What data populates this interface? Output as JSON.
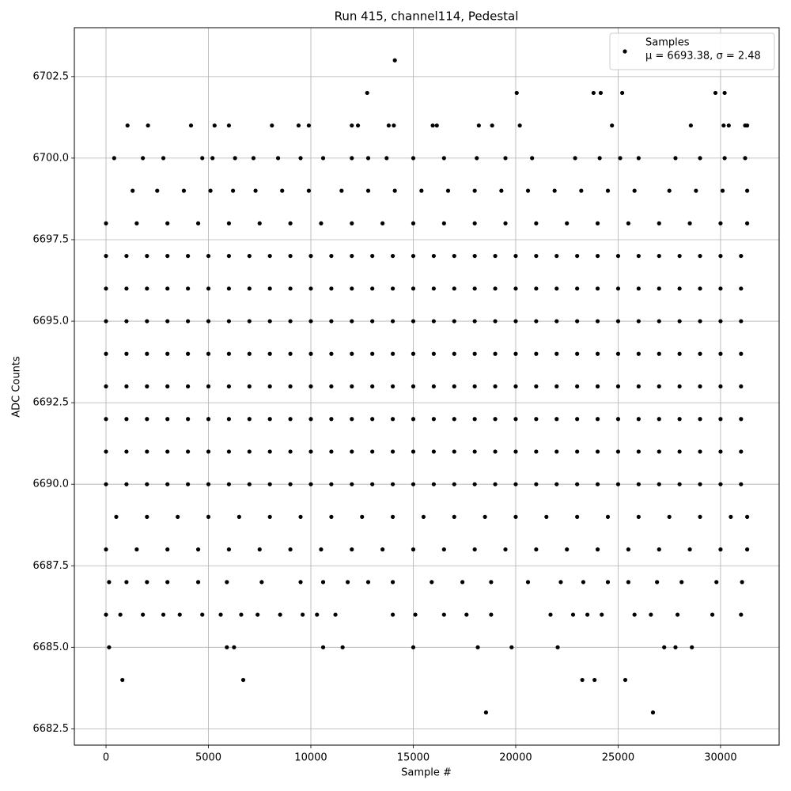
{
  "chart_data": {
    "type": "scatter",
    "title": "Run 415, channel114, Pedestal",
    "x_label": "Sample #",
    "y_label": "ADC Counts",
    "xlim": [
      -1545,
      32860
    ],
    "ylim": [
      6682,
      6704
    ],
    "xticks": [
      0,
      5000,
      10000,
      15000,
      20000,
      25000,
      30000
    ],
    "yticks": [
      6682.5,
      {
        "value": 6685,
        "label": "6685.0"
      },
      6687.5,
      {
        "value": 6690,
        "label": "6690.0"
      },
      6692.5,
      {
        "value": 6695,
        "label": "6695.0"
      },
      6697.5,
      {
        "value": 6700,
        "label": "6700.0"
      },
      6702.5
    ],
    "grid": true,
    "legend": "upper right",
    "legend_note": "μ = 6693.38, σ = 2.48",
    "series": [
      {
        "name": "Samples",
        "color": "#000000",
        "x": [
          0,
          1000,
          2000,
          3000,
          4000,
          5000,
          6000,
          7000,
          8000,
          9000,
          10000,
          11000,
          12000,
          13000,
          14000,
          15000,
          16000,
          17000,
          18000,
          19000,
          20000,
          21000,
          22000,
          23000,
          24000,
          25000,
          26000,
          27000,
          28000,
          29000,
          30000,
          31000,
          0,
          1000,
          2000,
          3000,
          4000,
          5000,
          6000,
          7000,
          8000,
          9000,
          10000,
          11000,
          12000,
          13000,
          14000,
          15000,
          16000,
          17000,
          18000,
          19000,
          20000,
          21000,
          22000,
          23000,
          24000,
          25000,
          26000,
          27000,
          28000,
          29000,
          30000,
          31000,
          0,
          1000,
          2000,
          3000,
          4000,
          5000,
          6000,
          7000,
          8000,
          9000,
          10000,
          11000,
          12000,
          13000,
          14000,
          15000,
          16000,
          17000,
          18000,
          19000,
          20000,
          21000,
          22000,
          23000,
          24000,
          25000,
          26000,
          27000,
          28000,
          29000,
          30000,
          31000,
          0,
          1000,
          2000,
          3000,
          4000,
          5000,
          6000,
          7000,
          8000,
          9000,
          10000,
          11000,
          12000,
          13000,
          14000,
          15000,
          16000,
          17000,
          18000,
          19000,
          20000,
          21000,
          22000,
          23000,
          24000,
          25000,
          26000,
          27000,
          28000,
          29000,
          30000,
          31000,
          0,
          1000,
          2000,
          3000,
          4000,
          5000,
          6000,
          7000,
          8000,
          9000,
          10000,
          11000,
          12000,
          13000,
          14000,
          15000,
          16000,
          17000,
          18000,
          19000,
          20000,
          21000,
          22000,
          23000,
          24000,
          25000,
          26000,
          27000,
          28000,
          29000,
          30000,
          31000,
          0,
          1000,
          2000,
          3000,
          4000,
          5000,
          6000,
          7000,
          8000,
          9000,
          10000,
          11000,
          12000,
          13000,
          14000,
          15000,
          16000,
          17000,
          18000,
          19000,
          20000,
          21000,
          22000,
          23000,
          24000,
          25000,
          26000,
          27000,
          28000,
          29000,
          30000,
          31000,
          0,
          1000,
          2000,
          3000,
          4000,
          5000,
          6000,
          7000,
          8000,
          9000,
          10000,
          11000,
          12000,
          13000,
          14000,
          15000,
          16000,
          17000,
          18000,
          19000,
          20000,
          21000,
          22000,
          23000,
          24000,
          25000,
          26000,
          27000,
          28000,
          29000,
          30000,
          31000,
          0,
          1000,
          2000,
          3000,
          4000,
          5000,
          6000,
          7000,
          8000,
          9000,
          10000,
          11000,
          12000,
          13000,
          14000,
          15000,
          16000,
          17000,
          18000,
          19000,
          20000,
          21000,
          22000,
          23000,
          24000,
          25000,
          26000,
          27000,
          28000,
          29000,
          30000,
          31000,
          0,
          1500,
          3000,
          4500,
          6000,
          7500,
          9000,
          10500,
          12000,
          13500,
          15000,
          16500,
          18000,
          19500,
          21000,
          22500,
          24000,
          25500,
          27000,
          28500,
          30000,
          31300,
          500,
          2000,
          3500,
          5000,
          6500,
          8000,
          9500,
          11000,
          12500,
          14000,
          15500,
          17000,
          18500,
          20000,
          21500,
          23000,
          24500,
          26000,
          27500,
          29000,
          30500,
          31300,
          0,
          1500,
          3000,
          4500,
          6000,
          7500,
          9000,
          10500,
          12000,
          13500,
          15000,
          16500,
          18000,
          19500,
          21000,
          22500,
          24000,
          25500,
          27000,
          28500,
          30000,
          31300,
          1300,
          2500,
          3800,
          5100,
          6200,
          7300,
          8600,
          9900,
          11500,
          12800,
          14100,
          15400,
          16700,
          18000,
          19300,
          20600,
          21900,
          23200,
          24500,
          25800,
          27500,
          28800,
          30100,
          31300,
          400,
          1800,
          2800,
          4700,
          5200,
          6300,
          7200,
          8400,
          9500,
          10600,
          12000,
          12800,
          13700,
          15000,
          16500,
          18100,
          19500,
          20800,
          22900,
          24100,
          25100,
          26000,
          27800,
          29000,
          30200,
          31200,
          1050,
          2050,
          4150,
          5300,
          6000,
          8100,
          9400,
          9900,
          12000,
          12300,
          13800,
          14050,
          15950,
          16150,
          18200,
          18850,
          20200,
          24700,
          28550,
          30150,
          30400,
          31200,
          31300,
          12750,
          20050,
          23800,
          24150,
          25200,
          29750,
          30200,
          14100,
          150,
          1000,
          2000,
          3000,
          4500,
          5900,
          7600,
          9500,
          10600,
          11800,
          12800,
          14000,
          15900,
          17400,
          18800,
          20600,
          22200,
          23300,
          24500,
          25500,
          26900,
          28100,
          29800,
          31050,
          0,
          700,
          1800,
          2800,
          3600,
          4700,
          5600,
          6600,
          7400,
          8500,
          9600,
          10300,
          11200,
          14000,
          15100,
          16500,
          17600,
          18800,
          21700,
          22800,
          23500,
          24200,
          25800,
          26600,
          27900,
          29600,
          31000,
          150,
          5900,
          6250,
          10600,
          11550,
          15000,
          18150,
          19800,
          22050,
          27250,
          27800,
          28600,
          800,
          6700,
          23250,
          23850,
          25350,
          18550,
          26700
        ],
        "values": [
          6690,
          6690,
          6690,
          6690,
          6690,
          6690,
          6690,
          6690,
          6690,
          6690,
          6690,
          6690,
          6690,
          6690,
          6690,
          6690,
          6690,
          6690,
          6690,
          6690,
          6690,
          6690,
          6690,
          6690,
          6690,
          6690,
          6690,
          6690,
          6690,
          6690,
          6690,
          6690,
          6691,
          6691,
          6691,
          6691,
          6691,
          6691,
          6691,
          6691,
          6691,
          6691,
          6691,
          6691,
          6691,
          6691,
          6691,
          6691,
          6691,
          6691,
          6691,
          6691,
          6691,
          6691,
          6691,
          6691,
          6691,
          6691,
          6691,
          6691,
          6691,
          6691,
          6691,
          6691,
          6692,
          6692,
          6692,
          6692,
          6692,
          6692,
          6692,
          6692,
          6692,
          6692,
          6692,
          6692,
          6692,
          6692,
          6692,
          6692,
          6692,
          6692,
          6692,
          6692,
          6692,
          6692,
          6692,
          6692,
          6692,
          6692,
          6692,
          6692,
          6692,
          6692,
          6692,
          6692,
          6693,
          6693,
          6693,
          6693,
          6693,
          6693,
          6693,
          6693,
          6693,
          6693,
          6693,
          6693,
          6693,
          6693,
          6693,
          6693,
          6693,
          6693,
          6693,
          6693,
          6693,
          6693,
          6693,
          6693,
          6693,
          6693,
          6693,
          6693,
          6693,
          6693,
          6693,
          6693,
          6694,
          6694,
          6694,
          6694,
          6694,
          6694,
          6694,
          6694,
          6694,
          6694,
          6694,
          6694,
          6694,
          6694,
          6694,
          6694,
          6694,
          6694,
          6694,
          6694,
          6694,
          6694,
          6694,
          6694,
          6694,
          6694,
          6694,
          6694,
          6694,
          6694,
          6694,
          6694,
          6695,
          6695,
          6695,
          6695,
          6695,
          6695,
          6695,
          6695,
          6695,
          6695,
          6695,
          6695,
          6695,
          6695,
          6695,
          6695,
          6695,
          6695,
          6695,
          6695,
          6695,
          6695,
          6695,
          6695,
          6695,
          6695,
          6695,
          6695,
          6695,
          6695,
          6695,
          6695,
          6696,
          6696,
          6696,
          6696,
          6696,
          6696,
          6696,
          6696,
          6696,
          6696,
          6696,
          6696,
          6696,
          6696,
          6696,
          6696,
          6696,
          6696,
          6696,
          6696,
          6696,
          6696,
          6696,
          6696,
          6696,
          6696,
          6696,
          6696,
          6696,
          6696,
          6696,
          6696,
          6697,
          6697,
          6697,
          6697,
          6697,
          6697,
          6697,
          6697,
          6697,
          6697,
          6697,
          6697,
          6697,
          6697,
          6697,
          6697,
          6697,
          6697,
          6697,
          6697,
          6697,
          6697,
          6697,
          6697,
          6697,
          6697,
          6697,
          6697,
          6697,
          6697,
          6697,
          6697,
          6688,
          6688,
          6688,
          6688,
          6688,
          6688,
          6688,
          6688,
          6688,
          6688,
          6688,
          6688,
          6688,
          6688,
          6688,
          6688,
          6688,
          6688,
          6688,
          6688,
          6688,
          6688,
          6689,
          6689,
          6689,
          6689,
          6689,
          6689,
          6689,
          6689,
          6689,
          6689,
          6689,
          6689,
          6689,
          6689,
          6689,
          6689,
          6689,
          6689,
          6689,
          6689,
          6689,
          6689,
          6698,
          6698,
          6698,
          6698,
          6698,
          6698,
          6698,
          6698,
          6698,
          6698,
          6698,
          6698,
          6698,
          6698,
          6698,
          6698,
          6698,
          6698,
          6698,
          6698,
          6698,
          6698,
          6699,
          6699,
          6699,
          6699,
          6699,
          6699,
          6699,
          6699,
          6699,
          6699,
          6699,
          6699,
          6699,
          6699,
          6699,
          6699,
          6699,
          6699,
          6699,
          6699,
          6699,
          6699,
          6699,
          6699,
          6700,
          6700,
          6700,
          6700,
          6700,
          6700,
          6700,
          6700,
          6700,
          6700,
          6700,
          6700,
          6700,
          6700,
          6700,
          6700,
          6700,
          6700,
          6700,
          6700,
          6700,
          6700,
          6700,
          6700,
          6700,
          6700,
          6701,
          6701,
          6701,
          6701,
          6701,
          6701,
          6701,
          6701,
          6701,
          6701,
          6701,
          6701,
          6701,
          6701,
          6701,
          6701,
          6701,
          6701,
          6701,
          6701,
          6701,
          6701,
          6701,
          6702,
          6702,
          6702,
          6702,
          6702,
          6702,
          6702,
          6703,
          6687,
          6687,
          6687,
          6687,
          6687,
          6687,
          6687,
          6687,
          6687,
          6687,
          6687,
          6687,
          6687,
          6687,
          6687,
          6687,
          6687,
          6687,
          6687,
          6687,
          6687,
          6687,
          6687,
          6687,
          6686,
          6686,
          6686,
          6686,
          6686,
          6686,
          6686,
          6686,
          6686,
          6686,
          6686,
          6686,
          6686,
          6686,
          6686,
          6686,
          6686,
          6686,
          6686,
          6686,
          6686,
          6686,
          6686,
          6686,
          6686,
          6686,
          6686,
          6685,
          6685,
          6685,
          6685,
          6685,
          6685,
          6685,
          6685,
          6685,
          6685,
          6685,
          6685,
          6684,
          6684,
          6684,
          6684,
          6684,
          6683,
          6683
        ]
      }
    ]
  }
}
